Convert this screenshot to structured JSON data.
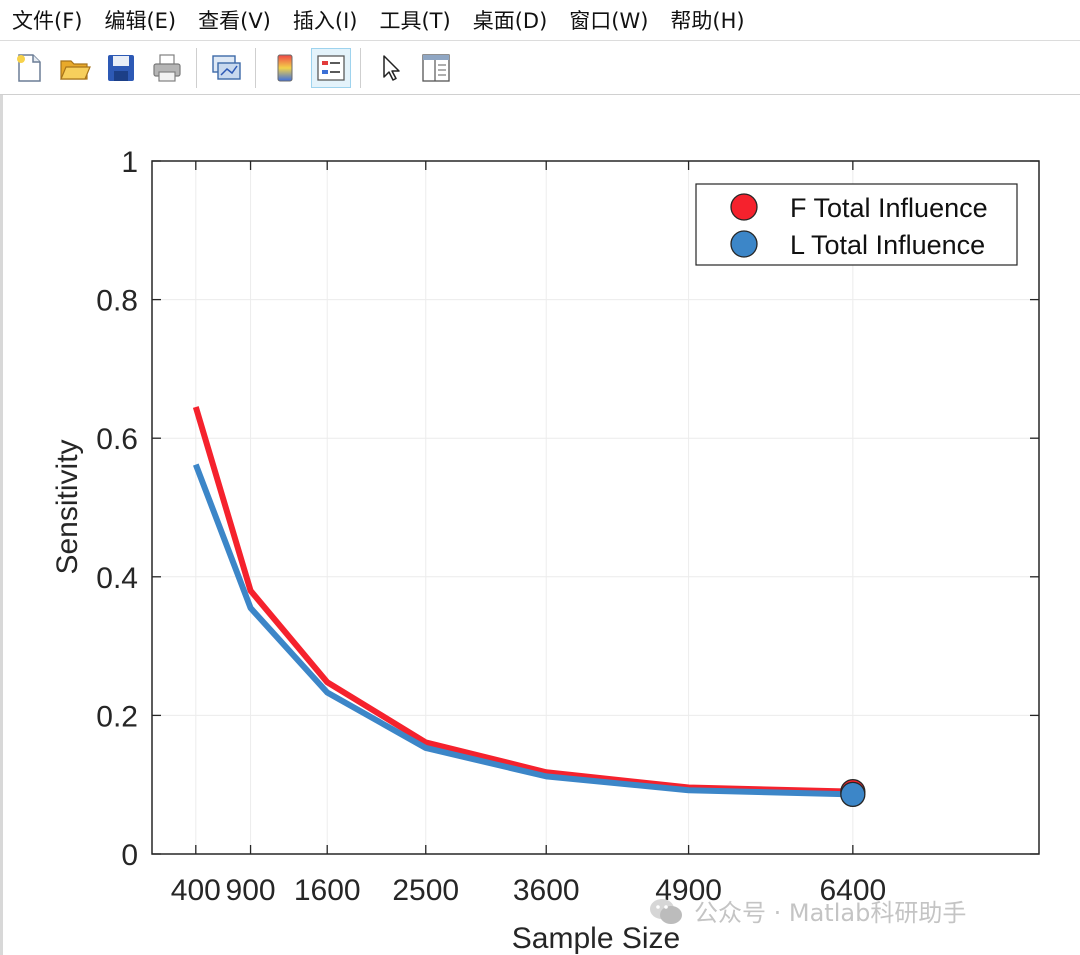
{
  "menu": [
    "文件(F)",
    "编辑(E)",
    "查看(V)",
    "插入(I)",
    "工具(T)",
    "桌面(D)",
    "窗口(W)",
    "帮助(H)"
  ],
  "toolbar": {
    "icons": [
      "new-file-icon",
      "open-folder-icon",
      "save-icon",
      "print-icon",
      "link-plot-icon",
      "colorbar-icon",
      "legend-icon",
      "pointer-icon",
      "property-inspector-icon"
    ]
  },
  "watermark": {
    "text": "公众号 · Matlab科研助手"
  },
  "chart_data": {
    "type": "line",
    "title": "",
    "xlabel": "Sample Size",
    "ylabel": "Sensitivity",
    "x": [
      400,
      900,
      1600,
      2500,
      3600,
      4900,
      6400
    ],
    "x_tick_labels": [
      "400",
      "900",
      "1600",
      "2500",
      "3600",
      "4900",
      "6400"
    ],
    "xlim": [
      0,
      8100
    ],
    "ylim": [
      0,
      1
    ],
    "y_ticks": [
      0,
      0.2,
      0.4,
      0.6,
      0.8,
      1
    ],
    "y_tick_labels": [
      "0",
      "0.2",
      "0.4",
      "0.6",
      "0.8",
      "1"
    ],
    "grid": true,
    "legend_position": "top-right",
    "series": [
      {
        "name": "F Total Influence",
        "color": "#f5222d",
        "values": [
          0.645,
          0.38,
          0.248,
          0.161,
          0.118,
          0.096,
          0.09
        ]
      },
      {
        "name": "L Total Influence",
        "color": "#3c86c8",
        "values": [
          0.562,
          0.355,
          0.233,
          0.153,
          0.112,
          0.092,
          0.086
        ]
      }
    ]
  }
}
